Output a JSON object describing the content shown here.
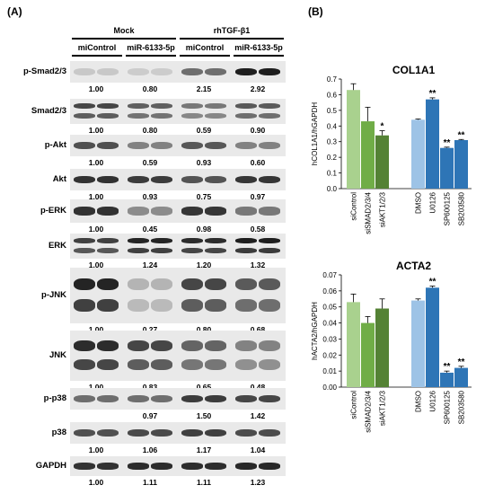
{
  "panels": {
    "a": "(A)",
    "b": "(B)"
  },
  "conditions": [
    "Mock",
    "rhTGF-β1"
  ],
  "groups": [
    "miControl",
    "miR-6133-5p",
    "miControl",
    "miR-6133-5p"
  ],
  "blots": [
    {
      "label": "p-Smad2/3",
      "values": [
        "1.00",
        "0.80",
        "2.15",
        "2.92"
      ],
      "intensity": [
        0.1,
        0.08,
        0.55,
        0.95
      ],
      "rows": 1
    },
    {
      "label": "Smad2/3",
      "values": [
        "1.00",
        "0.80",
        "0.59",
        "0.90"
      ],
      "intensity": [
        0.75,
        0.62,
        0.5,
        0.65
      ],
      "rows": 2
    },
    {
      "label": "p-Akt",
      "values": [
        "1.00",
        "0.59",
        "0.93",
        "0.60"
      ],
      "intensity": [
        0.7,
        0.45,
        0.66,
        0.45
      ],
      "rows": 1
    },
    {
      "label": "Akt",
      "values": [
        "1.00",
        "0.93",
        "0.75",
        "0.97"
      ],
      "intensity": [
        0.85,
        0.8,
        0.68,
        0.83
      ],
      "rows": 1
    },
    {
      "label": "p-ERK",
      "values": [
        "1.00",
        "0.45",
        "0.98",
        "0.58"
      ],
      "intensity": [
        0.85,
        0.4,
        0.83,
        0.5
      ],
      "rows": 1
    },
    {
      "label": "ERK",
      "values": [
        "1.00",
        "1.24",
        "1.20",
        "1.32"
      ],
      "intensity": [
        0.78,
        0.92,
        0.88,
        0.95
      ],
      "rows": 2
    },
    {
      "label": "p-JNK",
      "values": [
        "1.00",
        "0.27",
        "0.80",
        "0.68"
      ],
      "intensity": [
        0.92,
        0.2,
        0.75,
        0.65
      ],
      "rows": 2
    },
    {
      "label": "JNK",
      "values": [
        "1.00",
        "0.83",
        "0.65",
        "0.48"
      ],
      "intensity": [
        0.88,
        0.75,
        0.6,
        0.45
      ],
      "rows": 2
    },
    {
      "label": "p-p38",
      "values": [
        "",
        "0.97",
        "1.50",
        "1.42"
      ],
      "intensity": [
        0.55,
        0.55,
        0.8,
        0.75
      ],
      "rows": 1
    },
    {
      "label": "p38",
      "values": [
        "1.00",
        "1.06",
        "1.17",
        "1.04"
      ],
      "intensity": [
        0.7,
        0.73,
        0.78,
        0.72
      ],
      "rows": 1
    },
    {
      "label": "GAPDH",
      "values": [
        "1.00",
        "1.11",
        "1.11",
        "1.23"
      ],
      "intensity": [
        0.85,
        0.88,
        0.88,
        0.9
      ],
      "rows": 1
    }
  ],
  "chart_data": [
    {
      "type": "bar",
      "title": "COL1A1",
      "ylabel": "hCOL1A1/hGAPDH",
      "ylim": [
        0,
        0.7
      ],
      "yticks": [
        "0.0",
        "0.1",
        "0.2",
        "0.3",
        "0.4",
        "0.5",
        "0.6",
        "0.7"
      ],
      "categories": [
        "siControl",
        "siSMAD2/3/4",
        "siAKT1/2/3",
        "DMSO",
        "U0126",
        "SP600125",
        "SB203580"
      ],
      "values": [
        0.63,
        0.43,
        0.34,
        0.44,
        0.57,
        0.26,
        0.31
      ],
      "errors": [
        0.04,
        0.09,
        0.03,
        0.005,
        0.01,
        0.005,
        0.004
      ],
      "significance": [
        "",
        "",
        "*",
        "",
        "**",
        "**",
        "**"
      ],
      "colors": [
        "#a9d18e",
        "#70ad47",
        "#548235",
        "#9dc3e6",
        "#2e75b6",
        "#2e75b6",
        "#2e75b6"
      ]
    },
    {
      "type": "bar",
      "title": "ACTA2",
      "ylabel": "hACTA2/hGAPDH",
      "ylim": [
        0,
        0.07
      ],
      "yticks": [
        "0.00",
        "0.01",
        "0.02",
        "0.03",
        "0.04",
        "0.05",
        "0.06",
        "0.07"
      ],
      "categories": [
        "siControl",
        "siSMAD2/3/4",
        "siAKT1/2/3",
        "DMSO",
        "U0126",
        "SP600125",
        "SB203580"
      ],
      "values": [
        0.053,
        0.04,
        0.049,
        0.054,
        0.062,
        0.009,
        0.012
      ],
      "errors": [
        0.005,
        0.004,
        0.006,
        0.001,
        0.001,
        0.001,
        0.001
      ],
      "significance": [
        "",
        "",
        "",
        "",
        "**",
        "**",
        "**"
      ],
      "colors": [
        "#a9d18e",
        "#70ad47",
        "#548235",
        "#9dc3e6",
        "#2e75b6",
        "#2e75b6",
        "#2e75b6"
      ]
    }
  ]
}
